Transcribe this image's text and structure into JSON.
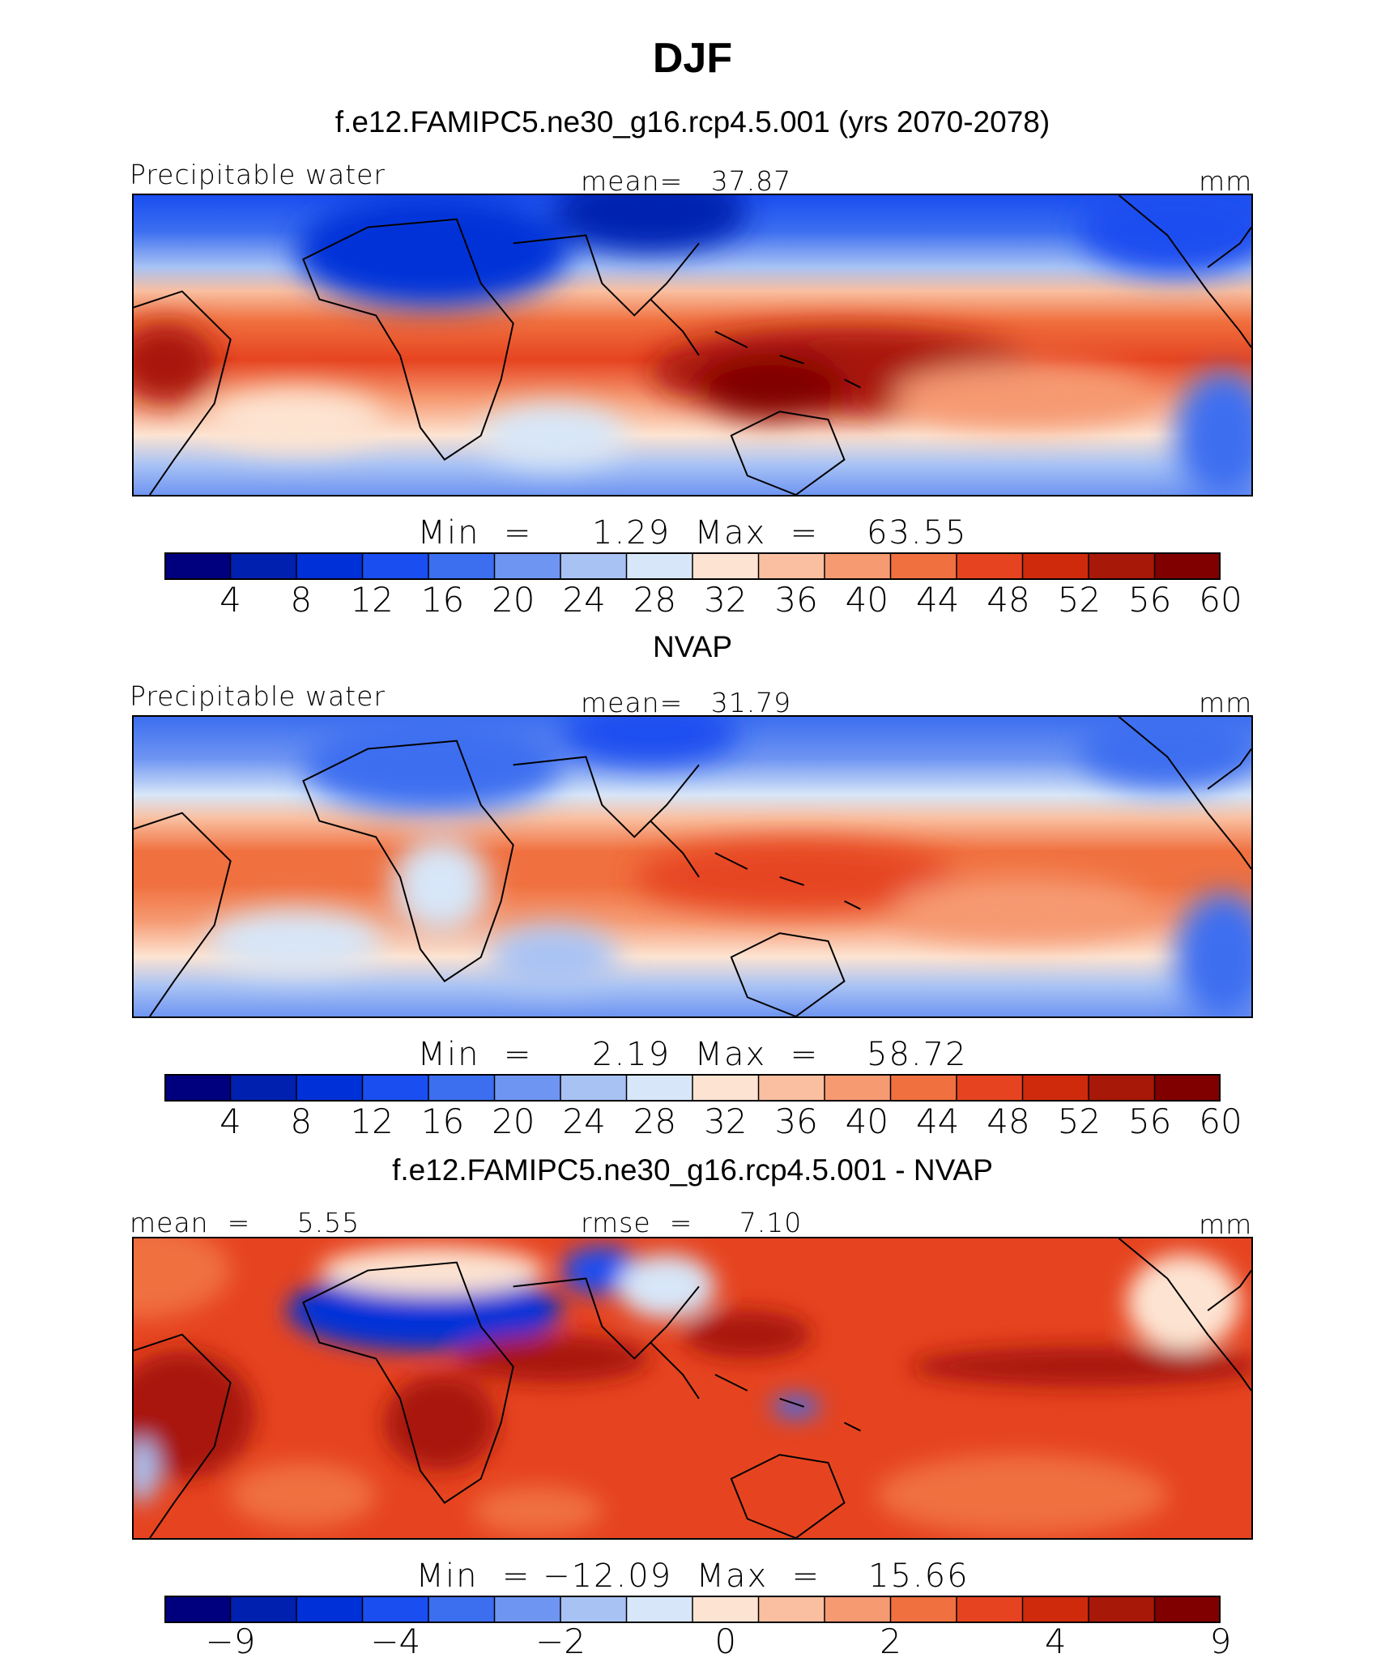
{
  "title": "DJF",
  "colors": [
    "#00007f",
    "#0020b0",
    "#0030d8",
    "#1a4ef0",
    "#3c6ef0",
    "#6f95f2",
    "#a8c2f4",
    "#d7e6f8",
    "#fde4d2",
    "#f9bfa0",
    "#f69a72",
    "#f0703f",
    "#e64420",
    "#d02a0c",
    "#a81808",
    "#800000"
  ],
  "panels": [
    {
      "title": "f.e12.FAMIPC5.ne30_g16.rcp4.5.001 (yrs 2070-2078)",
      "left_label": "Precipitable water",
      "center_label": "mean=   37.87",
      "right_label": "mm",
      "stats": "Min  =     1.29  Max  =    63.55",
      "ticks": [
        "4",
        "8",
        "12",
        "16",
        "20",
        "24",
        "28",
        "32",
        "36",
        "40",
        "44",
        "48",
        "52",
        "56",
        "60"
      ]
    },
    {
      "title": "NVAP",
      "left_label": "Precipitable water",
      "center_label": "mean=   31.79",
      "right_label": "mm",
      "stats": "Min  =     2.19  Max  =    58.72",
      "ticks": [
        "4",
        "8",
        "12",
        "16",
        "20",
        "24",
        "28",
        "32",
        "36",
        "40",
        "44",
        "48",
        "52",
        "56",
        "60"
      ]
    },
    {
      "title": "f.e12.FAMIPC5.ne30_g16.rcp4.5.001 - NVAP",
      "left_label": "mean  =     5.55",
      "center_label": "rmse  =     7.10",
      "right_label": "mm",
      "stats": "Min  = −12.09  Max  =    15.66",
      "ticks": [
        "−9",
        "−4",
        "−2",
        "0",
        "2",
        "4",
        "9"
      ]
    }
  ],
  "chart_data": [
    {
      "type": "heatmap",
      "title": "f.e12.FAMIPC5.ne30_g16.rcp4.5.001 (yrs 2070-2078)",
      "variable": "Precipitable water",
      "units": "mm",
      "mean": 37.87,
      "min": 1.29,
      "max": 63.55,
      "levels": [
        4,
        8,
        12,
        16,
        20,
        24,
        28,
        32,
        36,
        40,
        44,
        48,
        52,
        56,
        60
      ]
    },
    {
      "type": "heatmap",
      "title": "NVAP",
      "variable": "Precipitable water",
      "units": "mm",
      "mean": 31.79,
      "min": 2.19,
      "max": 58.72,
      "levels": [
        4,
        8,
        12,
        16,
        20,
        24,
        28,
        32,
        36,
        40,
        44,
        48,
        52,
        56,
        60
      ]
    },
    {
      "type": "heatmap",
      "title": "f.e12.FAMIPC5.ne30_g16.rcp4.5.001 - NVAP",
      "units": "mm",
      "mean": 5.55,
      "rmse": 7.1,
      "min": -12.09,
      "max": 15.66,
      "levels": [
        -9,
        -4,
        -2,
        0,
        2,
        4,
        9
      ]
    }
  ]
}
